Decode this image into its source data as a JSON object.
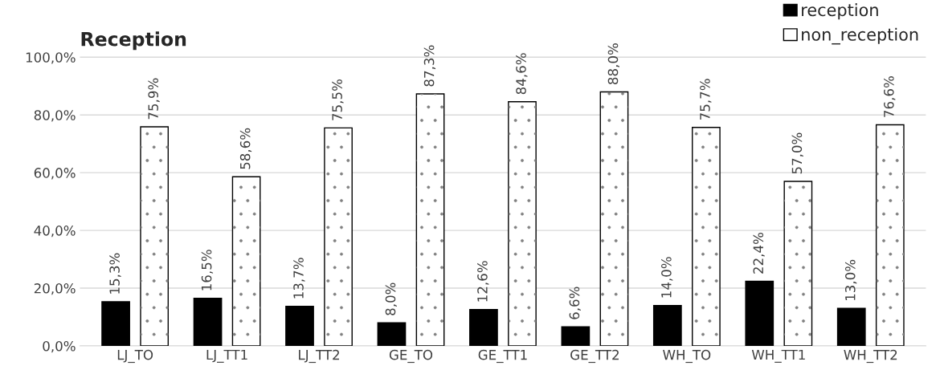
{
  "chart_data": {
    "type": "bar",
    "title": "Reception",
    "categories": [
      "LJ_TO",
      "LJ_TT1",
      "LJ_TT2",
      "GE_TO",
      "GE_TT1",
      "GE_TT2",
      "WH_TO",
      "WH_TT1",
      "WH_TT2"
    ],
    "series": [
      {
        "name": "reception",
        "color": "#000000",
        "values": [
          15.3,
          16.5,
          13.7,
          8.0,
          12.6,
          6.6,
          14.0,
          22.4,
          13.0
        ],
        "value_labels": [
          "15,3%",
          "16,5%",
          "13,7%",
          "8,0%",
          "12,6%",
          "6,6%",
          "14,0%",
          "22,4%",
          "13,0%"
        ]
      },
      {
        "name": "non_reception",
        "color": "#ffffff",
        "values": [
          75.9,
          58.6,
          75.5,
          87.3,
          84.6,
          88.0,
          75.7,
          57.0,
          76.6
        ],
        "value_labels": [
          "75,9%",
          "58,6%",
          "75,5%",
          "87,3%",
          "84,6%",
          "88,0%",
          "75,7%",
          "57,0%",
          "76,6%"
        ]
      }
    ],
    "ylim": [
      0,
      110
    ],
    "yticks": [
      {
        "value": 0,
        "label": "0,0%"
      },
      {
        "value": 20,
        "label": "20,0%"
      },
      {
        "value": 40,
        "label": "40,0%"
      },
      {
        "value": 60,
        "label": "60,0%"
      },
      {
        "value": 80,
        "label": "80,0%"
      },
      {
        "value": 100,
        "label": "100,0%"
      }
    ],
    "grid": "y",
    "legend": "top right"
  }
}
